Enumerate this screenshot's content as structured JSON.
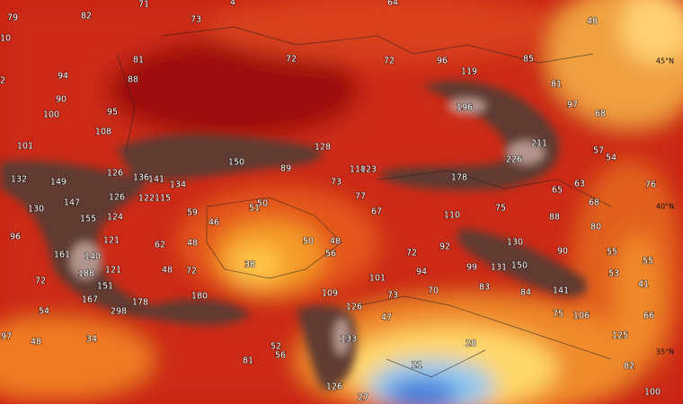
{
  "map": {
    "values": [
      79,
      82,
      71,
      73,
      4,
      64,
      48,
      10,
      81,
      72,
      72,
      96,
      119,
      85,
      2,
      94,
      88,
      81,
      90,
      196,
      97,
      100,
      95,
      68,
      108,
      211,
      101,
      128,
      57,
      54,
      150,
      226,
      89,
      118,
      123,
      178,
      126,
      136,
      141,
      132,
      149,
      134,
      73,
      76,
      65,
      63,
      126,
      122,
      115,
      147,
      77,
      68,
      50,
      51,
      130,
      59,
      67,
      110,
      75,
      88,
      155,
      124,
      46,
      80,
      96,
      121,
      50,
      48,
      62,
      48,
      92,
      130,
      72,
      56,
      90,
      55,
      161,
      140,
      38,
      150,
      131,
      99,
      94,
      55,
      48,
      72,
      121,
      188,
      53,
      72,
      101,
      151,
      41,
      141,
      83,
      84,
      70,
      73,
      109,
      180,
      167,
      178,
      126,
      298,
      54,
      75,
      106,
      66,
      47,
      97,
      48,
      34,
      133,
      28,
      125,
      52,
      56,
      81,
      21,
      82,
      126,
      100,
      27
    ],
    "latitude_labels": [
      "45°N",
      "40°N",
      "35°N"
    ]
  }
}
